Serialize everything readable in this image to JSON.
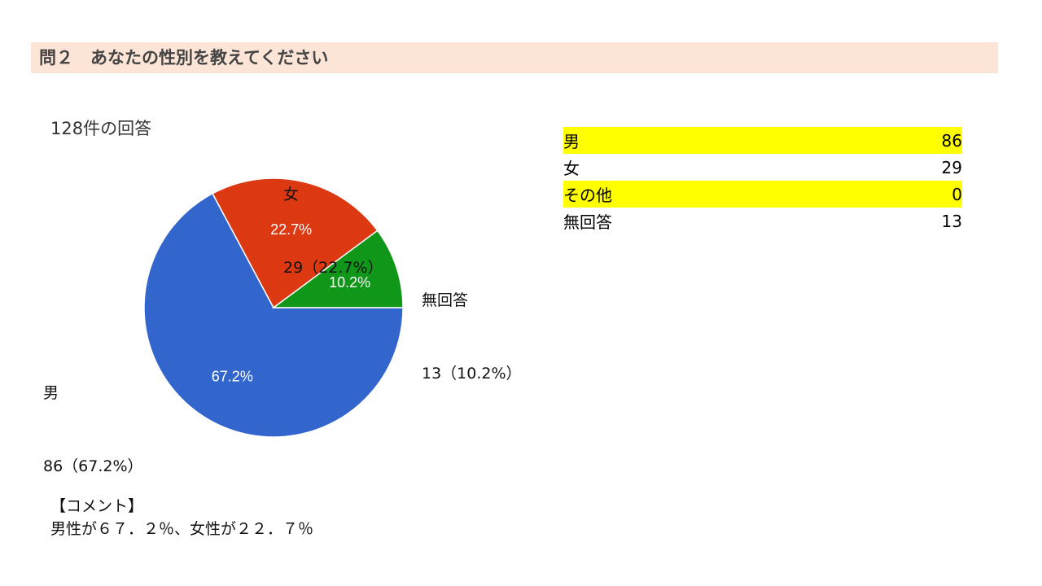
{
  "header": {
    "title": "問２　あなたの性別を教えてください"
  },
  "chart_data": {
    "type": "pie",
    "title": "128件の回答",
    "slices": [
      {
        "label": "男",
        "value": 86,
        "percent": 67.2,
        "pct_text": "67.2%",
        "callout": "86（67.2%）",
        "color": "#3366cc"
      },
      {
        "label": "女",
        "value": 29,
        "percent": 22.7,
        "pct_text": "22.7%",
        "callout": "29（22.7%）",
        "color": "#dc3912"
      },
      {
        "label": "無回答",
        "value": 13,
        "percent": 10.2,
        "pct_text": "10.2%",
        "callout": "13（10.2%）",
        "color": "#109618"
      }
    ]
  },
  "table": {
    "rows": [
      {
        "label": "男",
        "value": "86",
        "highlight": true
      },
      {
        "label": "女",
        "value": "29",
        "highlight": false
      },
      {
        "label": "その他",
        "value": "0",
        "highlight": true
      },
      {
        "label": "無回答",
        "value": "13",
        "highlight": false
      }
    ],
    "highlight_color": "#ffff00"
  },
  "comment": {
    "heading": "【コメント】",
    "text": "男性が６７．２％、女性が２２．７％"
  }
}
